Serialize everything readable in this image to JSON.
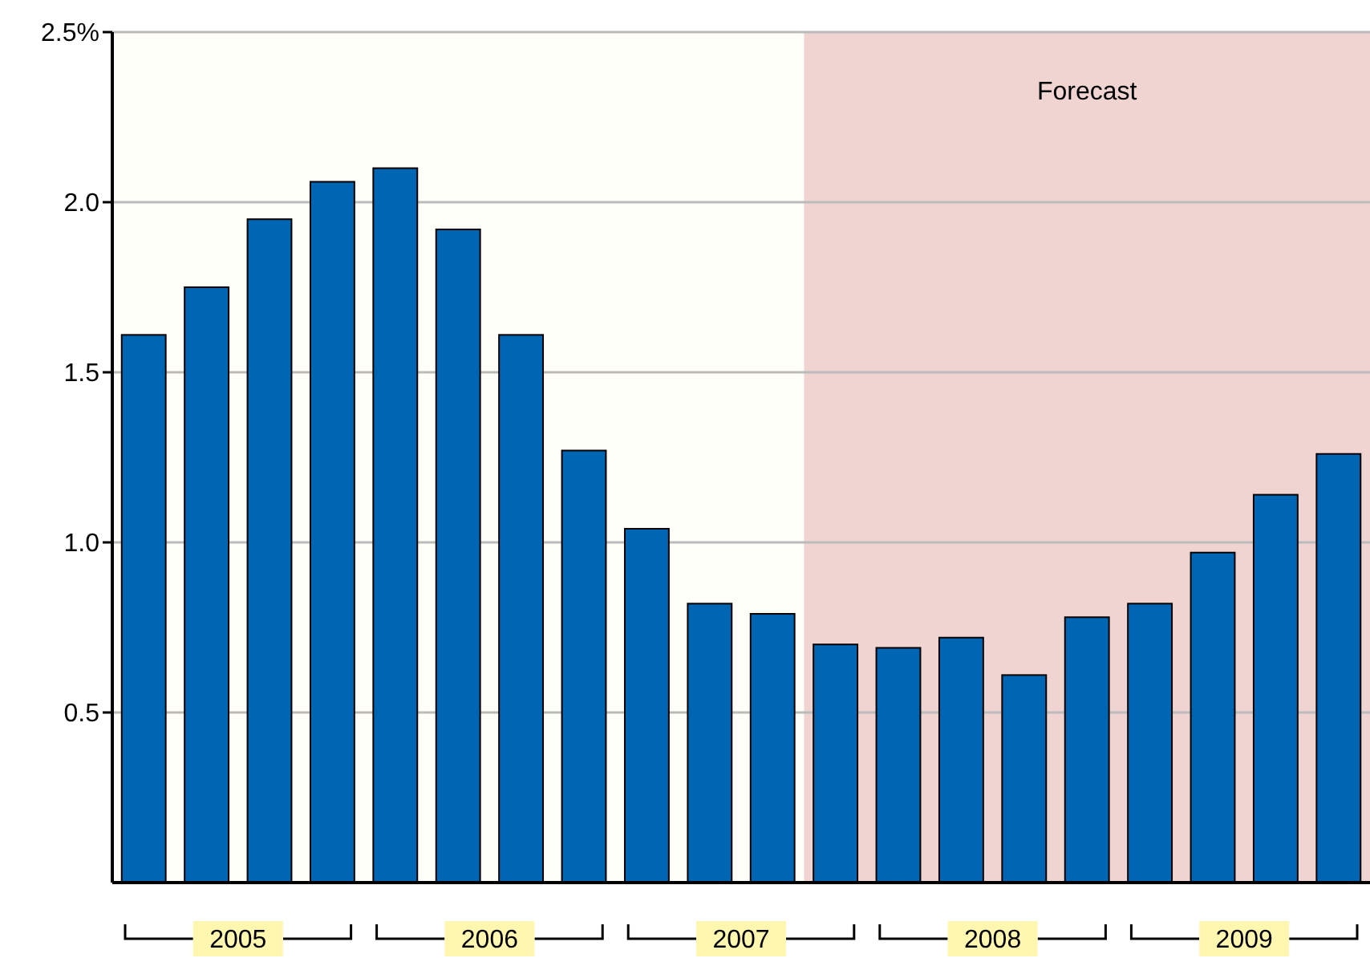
{
  "chart_data": {
    "type": "bar",
    "x": [
      2005.125,
      2005.375,
      2005.625,
      2005.875,
      2006.125,
      2006.375,
      2006.625,
      2006.875,
      2007.125,
      2007.375,
      2007.625,
      2007.875,
      2008.125,
      2008.375,
      2008.625,
      2008.875,
      2009.125,
      2009.375,
      2009.625,
      2009.875
    ],
    "values": [
      1.61,
      1.75,
      1.95,
      2.06,
      2.1,
      1.92,
      1.61,
      1.27,
      1.04,
      0.82,
      0.79,
      0.7,
      0.69,
      0.72,
      0.61,
      0.78,
      0.82,
      0.97,
      1.14,
      1.26
    ],
    "color": "#0066b3",
    "xlim": [
      2005,
      2010
    ],
    "xticks": [
      {
        "value": 2005.5,
        "label": "2005"
      },
      {
        "value": 2006.5,
        "label": "2006"
      },
      {
        "value": 2007.5,
        "label": "2007"
      },
      {
        "value": 2008.5,
        "label": "2008"
      },
      {
        "value": 2009.5,
        "label": "2009"
      }
    ],
    "ylim": [
      0,
      2.5
    ],
    "yticks": [
      {
        "value": 0.5,
        "label": "0.5"
      },
      {
        "value": 1,
        "label": "1.0"
      },
      {
        "value": 1.5,
        "label": "1.5"
      },
      {
        "value": 2,
        "label": "2.0"
      },
      {
        "value": 2.5,
        "label": "2.5%"
      }
    ],
    "grid": "y",
    "bands": [
      {
        "axis": "x",
        "from": 2007.75,
        "to": 2010,
        "label": "Forecast",
        "color": "#f0d4d2"
      }
    ]
  }
}
